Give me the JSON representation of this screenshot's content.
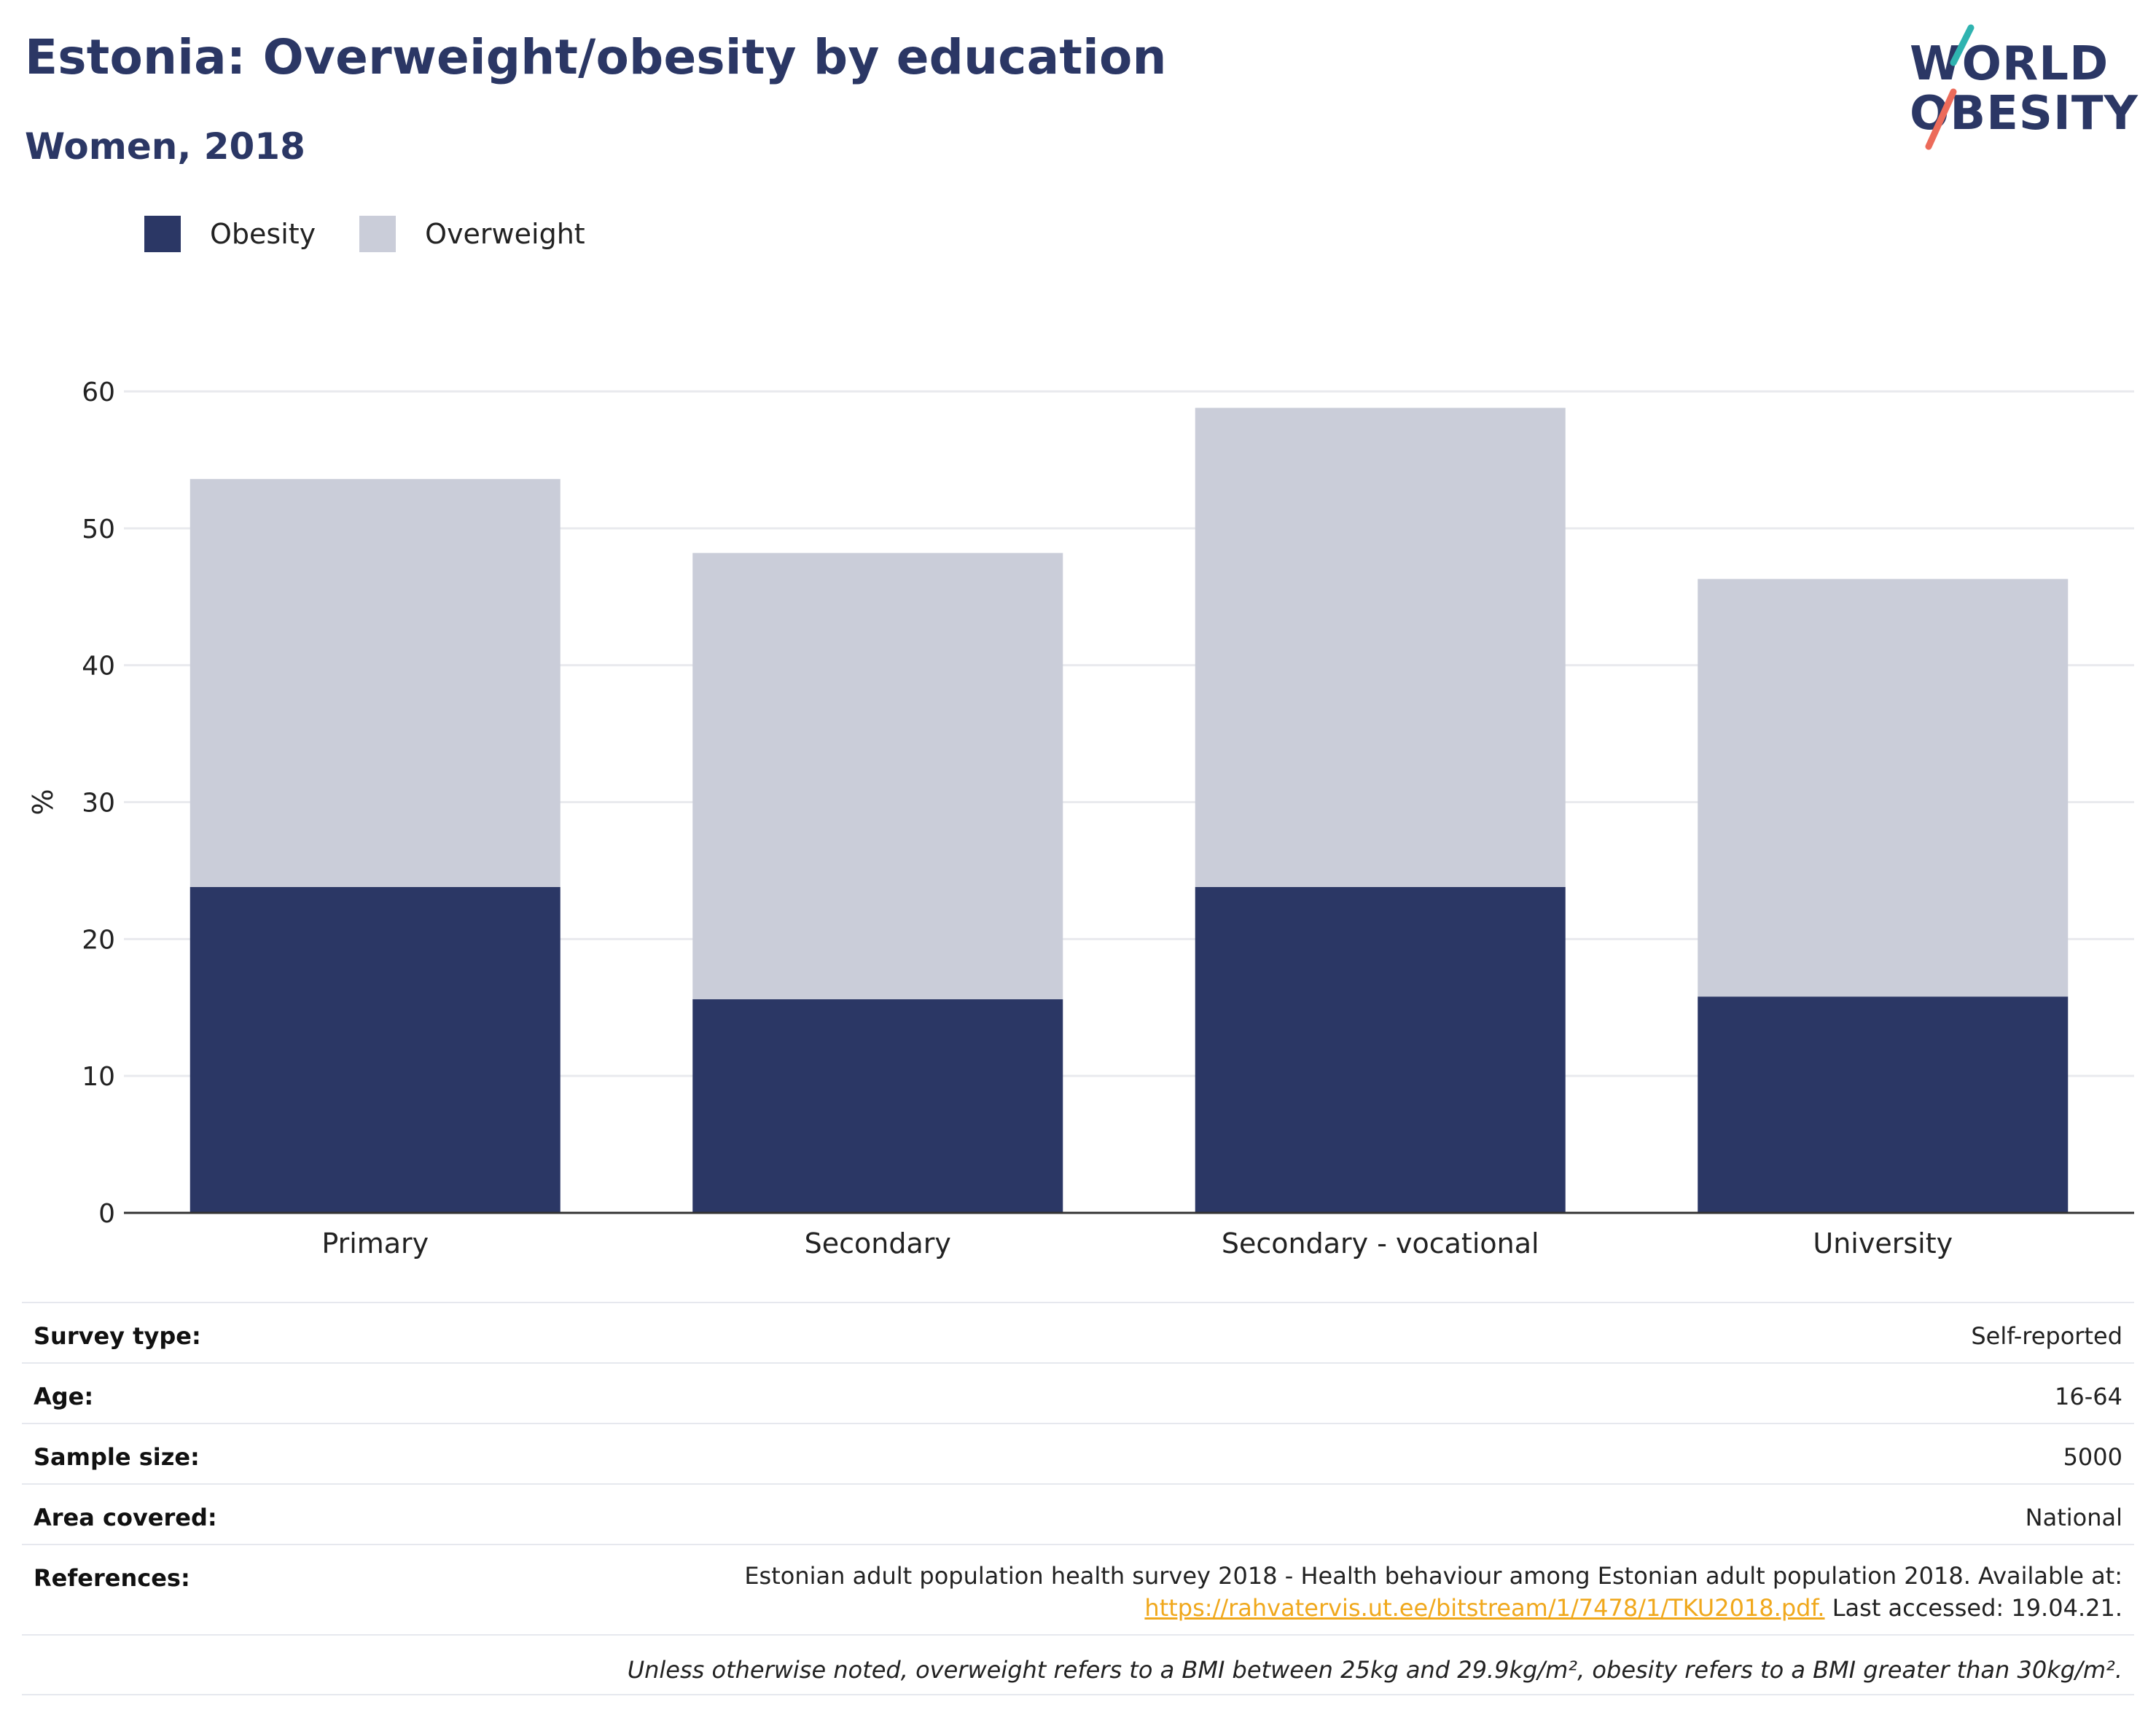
{
  "header": {
    "title": "Estonia: Overweight/obesity by education",
    "subtitle": "Women, 2018"
  },
  "logo": {
    "line1": "WORLD",
    "line2": "OBESITY"
  },
  "legend": [
    {
      "label": "Obesity",
      "color": "#2b3765"
    },
    {
      "label": "Overweight",
      "color": "#cacdd9"
    }
  ],
  "chart_data": {
    "type": "bar",
    "stacked": true,
    "categories": [
      "Primary",
      "Secondary",
      "Secondary - vocational",
      "University"
    ],
    "series": [
      {
        "name": "Obesity",
        "values": [
          23.8,
          15.6,
          23.8,
          15.8
        ],
        "color": "#2b3765"
      },
      {
        "name": "Overweight",
        "values": [
          29.8,
          32.6,
          35.0,
          30.5
        ],
        "color": "#cacdd9"
      }
    ],
    "ylabel": "%",
    "ylim": [
      0,
      60
    ],
    "yticks": [
      0,
      10,
      20,
      30,
      40,
      50,
      60
    ],
    "grid": true,
    "legend_position": "top-left"
  },
  "info": {
    "rows": [
      {
        "label": "Survey type:",
        "value": "Self-reported"
      },
      {
        "label": "Age:",
        "value": "16-64"
      },
      {
        "label": "Sample size:",
        "value": "5000"
      },
      {
        "label": "Area covered:",
        "value": "National"
      }
    ],
    "references": {
      "label": "References:",
      "text": "Estonian adult population health survey 2018 - Health behaviour among Estonian adult population 2018. Available at:",
      "link": "https://rahvatervis.ut.ee/bitstream/1/7478/1/TKU2018.pdf.",
      "suffix": " Last accessed: 19.04.21."
    },
    "note": "Unless otherwise noted, overweight refers to a BMI between 25kg and 29.9kg/m², obesity refers to a BMI greater than 30kg/m²."
  }
}
